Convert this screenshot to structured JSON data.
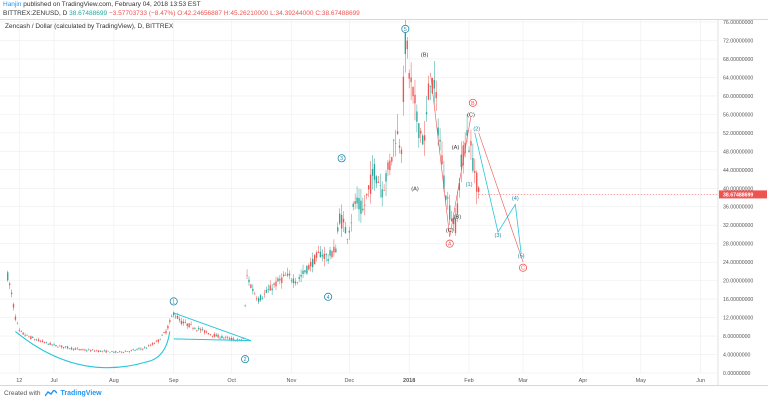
{
  "header": {
    "author": "Hanjin",
    "published": " published on TradingView.com, February 04, 2018 13:53 EST",
    "symbol": "BITTREX:ZENUSD, D",
    "last": "38.67488699",
    "change": "−3.57703733 (−8.47%)",
    "o": "O:42.24656887",
    "h": "H:45.26210000",
    "l": "L:34.39244000",
    "c": "C:38.67488699"
  },
  "footer": {
    "created_with": "Created with",
    "brand": "TradingView"
  },
  "colors": {
    "up": "#26a69a",
    "down": "#ef5350",
    "wave_line": "#26c6da",
    "corrective": "#ef5350",
    "price_tag": "#ef5350"
  },
  "chart_data": {
    "type": "candlestick",
    "title": "Zencash / Dollar (calculated by TradingView), D, BITTREX",
    "y_axis": {
      "ticks": [
        "0.00000000",
        "4.00000000",
        "8.00000000",
        "12.00000000",
        "16.00000000",
        "20.00000000",
        "24.00000000",
        "28.00000000",
        "32.00000000",
        "36.00000000",
        "40.00000000",
        "44.00000000",
        "48.00000000",
        "52.00000000",
        "56.00000000",
        "60.00000000",
        "64.00000000",
        "68.00000000",
        "72.00000000",
        "76.00000000"
      ],
      "range": [
        0,
        76
      ],
      "last_price": "38.67488699",
      "last_value": 38.67
    },
    "x_axis": {
      "ticks": [
        "12",
        "Jul",
        "Aug",
        "Sep",
        "Oct",
        "Nov",
        "Dec",
        "2018",
        "Feb",
        "Mar",
        "Apr",
        "May",
        "Jun"
      ],
      "tick_days": [
        0,
        18,
        49,
        80,
        110,
        141,
        171,
        202,
        233,
        261,
        292,
        322,
        353
      ],
      "range_days": [
        -10,
        362
      ]
    },
    "price_path": [
      [
        -6,
        21
      ],
      [
        -4,
        17
      ],
      [
        -2,
        12
      ],
      [
        0,
        9
      ],
      [
        4,
        8
      ],
      [
        10,
        7
      ],
      [
        18,
        6
      ],
      [
        25,
        5.5
      ],
      [
        32,
        5
      ],
      [
        40,
        4.8
      ],
      [
        50,
        4.5
      ],
      [
        58,
        4.8
      ],
      [
        66,
        5.5
      ],
      [
        72,
        7
      ],
      [
        76,
        9
      ],
      [
        80,
        13
      ],
      [
        84,
        11
      ],
      [
        90,
        10
      ],
      [
        96,
        9
      ],
      [
        102,
        8
      ],
      [
        108,
        7.5
      ],
      [
        114,
        7
      ],
      [
        116,
        7.5
      ],
      [
        118,
        21
      ],
      [
        121,
        18
      ],
      [
        124,
        16
      ],
      [
        127,
        17
      ],
      [
        132,
        19
      ],
      [
        138,
        21
      ],
      [
        144,
        20
      ],
      [
        150,
        23
      ],
      [
        156,
        26
      ],
      [
        160,
        25
      ],
      [
        164,
        27
      ],
      [
        166,
        34
      ],
      [
        170,
        30
      ],
      [
        174,
        37
      ],
      [
        178,
        35
      ],
      [
        184,
        44
      ],
      [
        188,
        40
      ],
      [
        192,
        45
      ],
      [
        195,
        52
      ],
      [
        198,
        50
      ],
      [
        200,
        72
      ],
      [
        203,
        62
      ],
      [
        206,
        55
      ],
      [
        210,
        50
      ],
      [
        213,
        65
      ],
      [
        216,
        58
      ],
      [
        220,
        42
      ],
      [
        223,
        35
      ],
      [
        226,
        32
      ],
      [
        229,
        45
      ],
      [
        232,
        52
      ],
      [
        234,
        48
      ],
      [
        236,
        44
      ],
      [
        238,
        38.7
      ]
    ],
    "annotations": {
      "impulse_wave": [
        {
          "label": "1",
          "day": 80,
          "value": 15.5
        },
        {
          "label": "2",
          "day": 117,
          "value": 3.0
        },
        {
          "label": "3",
          "day": 167,
          "value": 46.5
        },
        {
          "label": "4",
          "day": 160,
          "value": 16.5
        },
        {
          "label": "5",
          "day": 200,
          "value": 74.5
        }
      ],
      "letters": [
        {
          "label": "(A)",
          "day": 205,
          "value": 39.5
        },
        {
          "label": "(B)",
          "day": 210,
          "value": 68.5
        },
        {
          "label": "(C)",
          "day": 223,
          "value": 30.5
        },
        {
          "label": "(A)",
          "day": 226,
          "value": 48.5
        },
        {
          "label": "(B)",
          "day": 227,
          "value": 33.5
        },
        {
          "label": "(C)",
          "day": 234,
          "value": 55.5
        }
      ],
      "circle_letters": [
        {
          "label": "A",
          "day": 223,
          "value": 28.0
        },
        {
          "label": "B",
          "day": 235,
          "value": 58.5
        },
        {
          "label": "C",
          "day": 261,
          "value": 22.8
        }
      ],
      "projection": [
        {
          "label": "(1)",
          "day": 233,
          "value": 40.5
        },
        {
          "label": "(2)",
          "day": 237,
          "value": 52.5
        },
        {
          "label": "(3)",
          "day": 248,
          "value": 29.5
        },
        {
          "label": "(4)",
          "day": 257,
          "value": 37.5
        },
        {
          "label": "(5)",
          "day": 260,
          "value": 25.0
        }
      ]
    }
  }
}
